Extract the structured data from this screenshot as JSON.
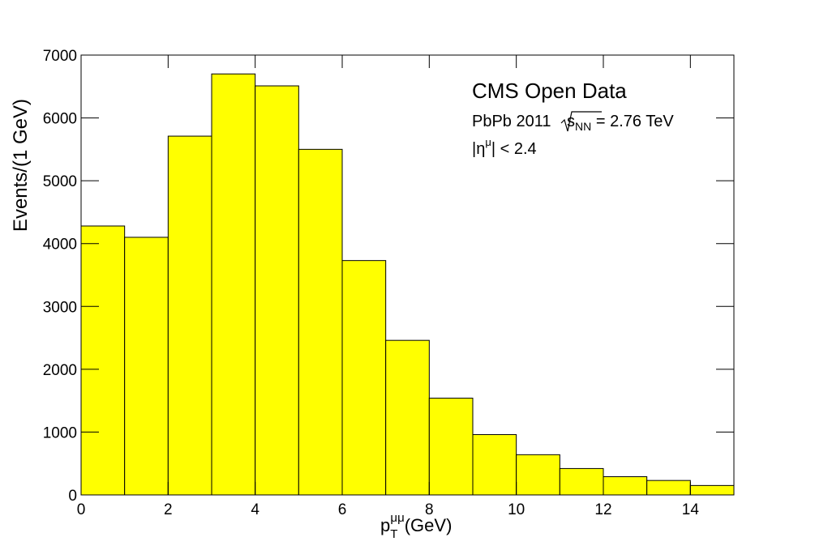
{
  "chart_data": {
    "type": "histogram",
    "bins": [
      0,
      1,
      2,
      3,
      4,
      5,
      6,
      7,
      8,
      9,
      10,
      11,
      12,
      13,
      14,
      15
    ],
    "values": [
      4280,
      4100,
      5710,
      6700,
      6510,
      5500,
      3730,
      2460,
      1540,
      960,
      640,
      420,
      290,
      230,
      150
    ],
    "color": "#ffff00",
    "xlim": [
      0,
      15
    ],
    "xticks": [
      0,
      2,
      4,
      6,
      8,
      10,
      12,
      14
    ],
    "ylim": [
      0,
      7000
    ],
    "yticks": [
      0,
      1000,
      2000,
      3000,
      4000,
      5000,
      6000,
      7000
    ],
    "ylabel": "Events/(1 GeV)",
    "xlabel": {
      "base": "p",
      "sub": "T",
      "sup": "μμ",
      "unit": "(GeV)"
    },
    "annotations": {
      "title": "CMS Open Data",
      "energy": {
        "pre": "PbPb 2011 ",
        "base": "s",
        "sub": "NN",
        "post": " = 2.76 TeV"
      },
      "cut": {
        "pre": "|η",
        "sup": "μ",
        "post": "| < 2.4"
      }
    }
  }
}
